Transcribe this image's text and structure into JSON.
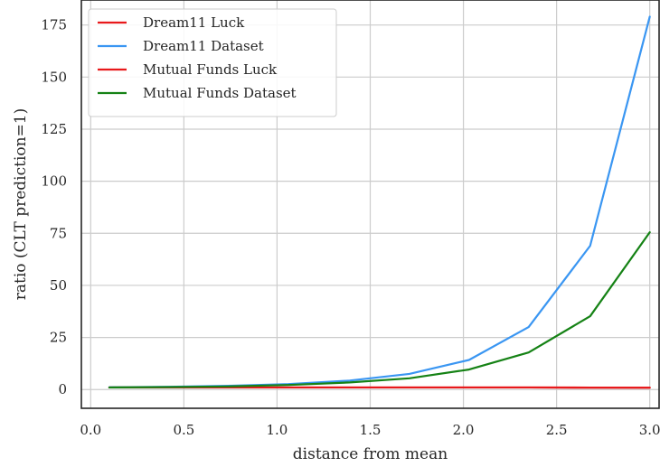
{
  "chart_data": {
    "type": "line",
    "xlabel": "distance from mean",
    "ylabel": "ratio (CLT prediction=1)",
    "xlim": [
      -0.05,
      3.05
    ],
    "ylim": [
      -9,
      187
    ],
    "xticks": [
      0.0,
      0.5,
      1.0,
      1.5,
      2.0,
      2.5,
      3.0
    ],
    "xtick_labels": [
      "0.0",
      "0.5",
      "1.0",
      "1.5",
      "2.0",
      "2.5",
      "3.0"
    ],
    "yticks": [
      0,
      25,
      50,
      75,
      100,
      125,
      150,
      175
    ],
    "ytick_labels": [
      "0",
      "25",
      "50",
      "75",
      "100",
      "125",
      "150",
      "175"
    ],
    "grid": true,
    "legend_position": "top-left",
    "x": [
      0.1,
      0.42,
      0.74,
      1.06,
      1.39,
      1.71,
      2.03,
      2.35,
      2.68,
      3.0
    ],
    "series": [
      {
        "name": "Dream11 Luck",
        "color": "#e8191b",
        "values": [
          1,
          1,
          1,
          1,
          1,
          1,
          1,
          1,
          0.9,
          0.9
        ]
      },
      {
        "name": "Dream11 Dataset",
        "color": "#3a96f2",
        "values": [
          1.1,
          1.3,
          1.8,
          2.6,
          4.3,
          7.5,
          14.2,
          30,
          69,
          179
        ]
      },
      {
        "name": "Mutual Funds Luck",
        "color": "#e8191b",
        "values": [
          1,
          1,
          1,
          1,
          1,
          1,
          1,
          1,
          0.95,
          0.9
        ]
      },
      {
        "name": "Mutual Funds Dataset",
        "color": "#158215",
        "values": [
          1,
          1.2,
          1.5,
          2.2,
          3.4,
          5.4,
          9.6,
          17.8,
          35.2,
          75.5
        ]
      }
    ]
  }
}
